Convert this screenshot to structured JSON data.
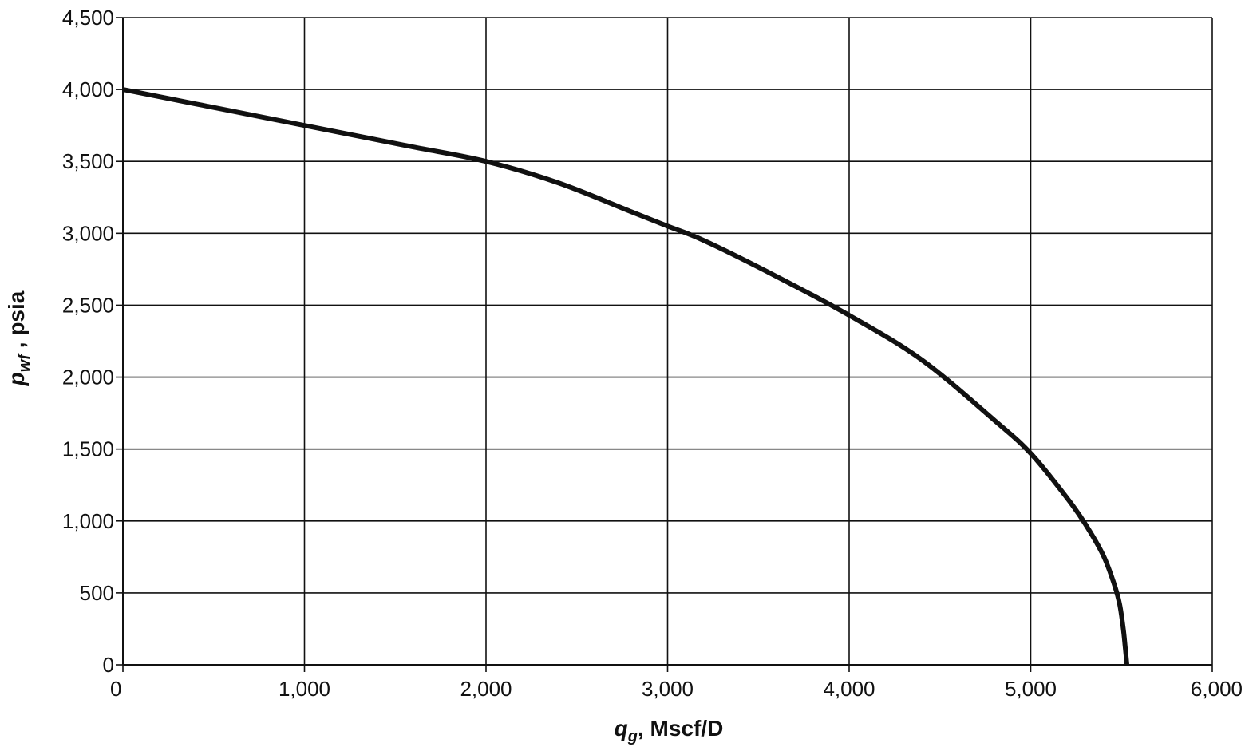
{
  "chart_data": {
    "type": "line",
    "title": "",
    "xlabel": {
      "symbol": "q",
      "subscript": "g",
      "rest": ", Mscf/D"
    },
    "ylabel": {
      "symbol": "p",
      "subscript": "wf",
      "rest": " ,  psia"
    },
    "xlim": [
      0,
      6000
    ],
    "ylim": [
      0,
      4500
    ],
    "x_ticks": [
      0,
      1000,
      2000,
      3000,
      4000,
      5000,
      6000
    ],
    "x_tick_labels": [
      "0",
      "1,000",
      "2,000",
      "3,000",
      "4,000",
      "5,000",
      "6,000"
    ],
    "y_ticks": [
      0,
      500,
      1000,
      1500,
      2000,
      2500,
      3000,
      3500,
      4000,
      4500
    ],
    "y_tick_labels": [
      "0",
      "500",
      "1,000",
      "1,500",
      "2,000",
      "2,500",
      "3,000",
      "3,500",
      "4,000",
      "4,500"
    ],
    "grid": true,
    "line_color": "#111111",
    "series": [
      {
        "x": [
          0,
          400,
          800,
          1200,
          1600,
          2000,
          2400,
          2800,
          3000,
          3200,
          3600,
          4000,
          4400,
          4800,
          5000,
          5200,
          5300,
          5400,
          5460,
          5490,
          5510,
          5520,
          5530
        ],
        "y": [
          4000,
          3900,
          3800,
          3700,
          3600,
          3500,
          3350,
          3150,
          3050,
          2950,
          2700,
          2430,
          2120,
          1700,
          1470,
          1160,
          980,
          760,
          560,
          420,
          250,
          130,
          0
        ]
      }
    ]
  }
}
